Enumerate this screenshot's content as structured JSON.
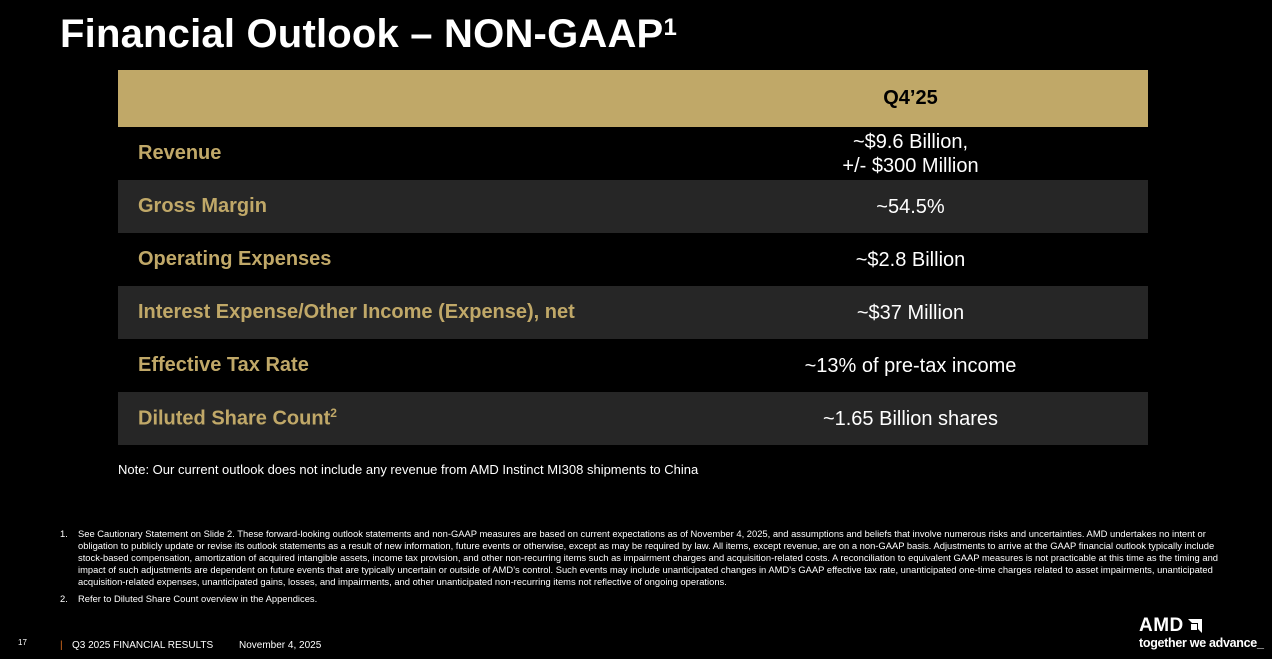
{
  "title": "Financial Outlook – NON-GAAP",
  "title_sup": "1",
  "table": {
    "column_header": "Q4’25",
    "rows": [
      {
        "label": "Revenue",
        "sup": "",
        "value_lines": [
          "~$9.6 Billion,",
          "+/- $300 Million"
        ]
      },
      {
        "label": "Gross Margin",
        "sup": "",
        "value_lines": [
          "~54.5%"
        ]
      },
      {
        "label": "Operating Expenses",
        "sup": "",
        "value_lines": [
          "~$2.8 Billion"
        ]
      },
      {
        "label": "Interest Expense/Other Income (Expense), net",
        "sup": "",
        "value_lines": [
          "~$37 Million"
        ]
      },
      {
        "label": "Effective Tax Rate",
        "sup": "",
        "value_lines": [
          "~13% of pre-tax income"
        ]
      },
      {
        "label": "Diluted Share Count",
        "sup": "2",
        "value_lines": [
          "~1.65 Billion shares"
        ]
      }
    ]
  },
  "note": "Note: Our current outlook does not include any revenue from AMD Instinct MI308 shipments to China",
  "footnotes": [
    {
      "num": "1.",
      "text": "See Cautionary Statement on Slide 2. These forward-looking outlook statements and non-GAAP measures are based on current expectations as of November 4, 2025, and assumptions and beliefs that involve numerous risks and uncertainties. AMD undertakes no intent or obligation to publicly update or revise its outlook statements as a result of new information, future events or otherwise, except as may be required by law. All items, except revenue, are on a non-GAAP basis. Adjustments to arrive at the GAAP financial outlook typically include stock-based compensation, amortization of acquired intangible assets, income tax provision, and other non-recurring items such as impairment charges and acquisition-related costs. A reconciliation to equivalent GAAP measures is not practicable at this time as the timing and impact of such adjustments are dependent on future events that are typically uncertain or outside of AMD’s control. Such events may include unanticipated changes in AMD’s GAAP effective tax rate, unanticipated one-time charges related to asset impairments, unanticipated acquisition-related expenses, unanticipated gains, losses, and impairments, and other unanticipated non-recurring items not reflective of ongoing operations."
    },
    {
      "num": "2.",
      "text": "Refer to Diluted Share Count overview in the Appendices."
    }
  ],
  "footer": {
    "page": "17",
    "separator": "|",
    "report": "Q3 2025 FINANCIAL RESULTS",
    "date": "November 4, 2025"
  },
  "logo": {
    "brand": "AMD",
    "tagline": "together we advance_"
  },
  "colors": {
    "gold": "#c0a868",
    "alt_row": "#262626",
    "background": "#000000"
  }
}
